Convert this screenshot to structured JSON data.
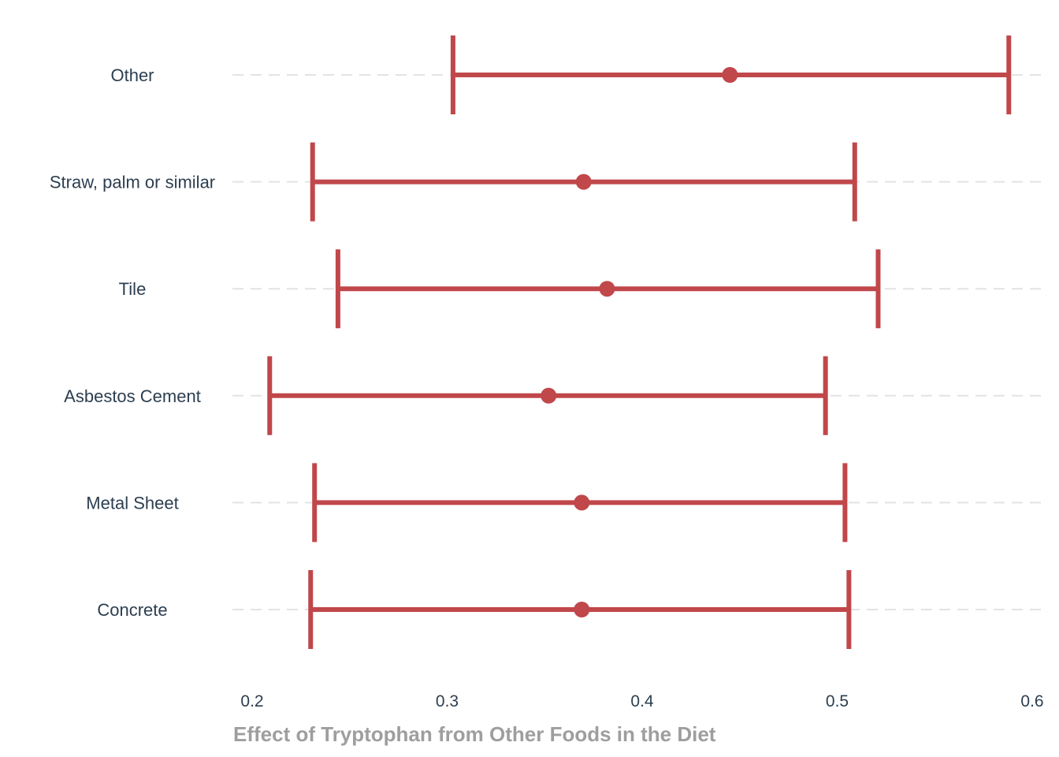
{
  "chart_data": {
    "type": "errorbar",
    "xlabel": "Effect of Tryptophan from Other Foods in the Diet",
    "ylabel": "",
    "xlim": [
      0.19,
      0.605
    ],
    "x_ticks": [
      0.2,
      0.3,
      0.4,
      0.5,
      0.6
    ],
    "x_tick_labels": [
      "0.2",
      "0.3",
      "0.4",
      "0.5",
      "0.6"
    ],
    "grid": "horizontal dashed",
    "color": "#c0474a",
    "categories": [
      "Other",
      "Straw, palm or similar",
      "Tile",
      "Asbestos Cement",
      "Metal Sheet",
      "Concrete"
    ],
    "points": [
      {
        "category": "Other",
        "estimate": 0.445,
        "lower": 0.303,
        "upper": 0.588
      },
      {
        "category": "Straw, palm or similar",
        "estimate": 0.37,
        "lower": 0.231,
        "upper": 0.509
      },
      {
        "category": "Tile",
        "estimate": 0.382,
        "lower": 0.244,
        "upper": 0.521
      },
      {
        "category": "Asbestos Cement",
        "estimate": 0.352,
        "lower": 0.209,
        "upper": 0.494
      },
      {
        "category": "Metal Sheet",
        "estimate": 0.369,
        "lower": 0.232,
        "upper": 0.504
      },
      {
        "category": "Concrete",
        "estimate": 0.369,
        "lower": 0.23,
        "upper": 0.506
      }
    ]
  }
}
